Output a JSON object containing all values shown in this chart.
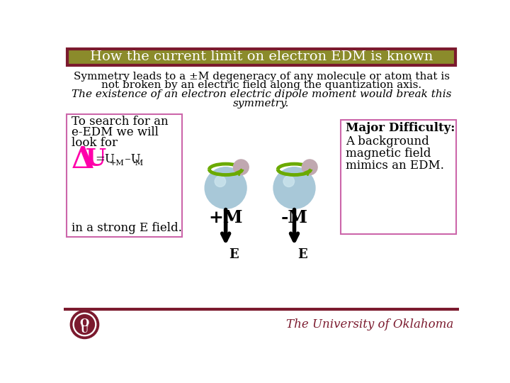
{
  "title": "How the current limit on electron EDM is known",
  "title_bg": "#8B8B2B",
  "title_border": "#7B1A2E",
  "title_text_color": "#FFFFFF",
  "bg_color": "#FFFFFF",
  "main_text_color": "#000000",
  "crimson": "#7B1A2E",
  "box_border": "#CC66AA",
  "olive": "#8B8B2B",
  "line1": "Symmetry leads to a ±M degeneracy of any molecule or atom that is",
  "line2": "not broken by an electric field along the quantization axis.",
  "line3_italic": "The existence of an electron electric dipole moment would break this",
  "line4_italic": "symmetry.",
  "left_box_lines": [
    "To search for an",
    "e-EDM we will",
    "look for"
  ],
  "left_box_last": "in a strong E field.",
  "right_box_lines": [
    "A background",
    "magnetic field",
    "mimics an EDM."
  ],
  "footer_text": "The University of Oklahoma",
  "footer_color": "#7B1A2E",
  "plus_m_label": "+M",
  "minus_m_label": "-M",
  "e_label": "E",
  "atom_large_color": "#A8C8D8",
  "atom_small_color": "#C0A8B0",
  "ring_color": "#6AAA00",
  "arrow_color": "#000000",
  "delta_color": "#FF00AA",
  "u_color": "#FF00AA"
}
